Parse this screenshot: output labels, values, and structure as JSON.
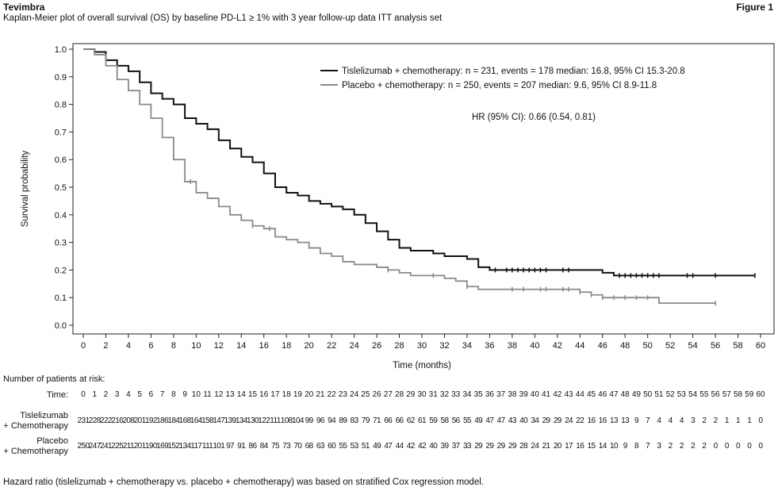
{
  "header": {
    "brand": "Tevimbra",
    "figure": "Figure 1",
    "subtitle": "Kaplan-Meier plot of overall survival (OS) by baseline PD-L1 ≥ 1% with 3 year follow-up data ITT analysis set"
  },
  "chart_data": {
    "type": "line",
    "title": "",
    "xlabel": "Time (months)",
    "ylabel": "Survival probability",
    "xlim": [
      0,
      60
    ],
    "ylim": [
      0,
      1.0
    ],
    "xticks": [
      0,
      2,
      4,
      6,
      8,
      10,
      12,
      14,
      16,
      18,
      20,
      22,
      24,
      26,
      28,
      30,
      32,
      34,
      36,
      38,
      40,
      42,
      44,
      46,
      48,
      50,
      52,
      54,
      56,
      58,
      60
    ],
    "yticks": [
      0.0,
      0.1,
      0.2,
      0.3,
      0.4,
      0.5,
      0.6,
      0.7,
      0.8,
      0.9,
      1.0
    ],
    "ytick_labels": [
      "0.0",
      "0.1",
      "0.2",
      "0.3",
      "0.4",
      "0.5",
      "0.6",
      "0.7",
      "0.8",
      "0.9",
      "1.0"
    ],
    "grid": false,
    "legend_position": "top-right",
    "annotation": "HR (95% CI): 0.66 (0.54, 0.81)",
    "series": [
      {
        "name": "Tislelizumab + chemotherapy: n = 231, events = 178 median: 16.8, 95% CI 15.3-20.8",
        "color": "#111111",
        "points": [
          [
            0,
            1.0
          ],
          [
            1,
            0.99
          ],
          [
            2,
            0.96
          ],
          [
            3,
            0.94
          ],
          [
            4,
            0.92
          ],
          [
            5,
            0.88
          ],
          [
            6,
            0.84
          ],
          [
            7,
            0.82
          ],
          [
            8,
            0.8
          ],
          [
            9,
            0.75
          ],
          [
            10,
            0.73
          ],
          [
            11,
            0.71
          ],
          [
            12,
            0.67
          ],
          [
            13,
            0.64
          ],
          [
            14,
            0.61
          ],
          [
            15,
            0.59
          ],
          [
            16,
            0.55
          ],
          [
            17,
            0.5
          ],
          [
            18,
            0.48
          ],
          [
            19,
            0.47
          ],
          [
            20,
            0.45
          ],
          [
            21,
            0.44
          ],
          [
            22,
            0.43
          ],
          [
            23,
            0.42
          ],
          [
            24,
            0.4
          ],
          [
            25,
            0.37
          ],
          [
            26,
            0.34
          ],
          [
            27,
            0.31
          ],
          [
            28,
            0.28
          ],
          [
            29,
            0.27
          ],
          [
            30,
            0.27
          ],
          [
            31,
            0.26
          ],
          [
            32,
            0.25
          ],
          [
            33,
            0.25
          ],
          [
            34,
            0.24
          ],
          [
            35,
            0.21
          ],
          [
            36,
            0.2
          ],
          [
            38,
            0.2
          ],
          [
            40,
            0.2
          ],
          [
            42,
            0.2
          ],
          [
            44,
            0.2
          ],
          [
            45,
            0.2
          ],
          [
            46,
            0.19
          ],
          [
            47,
            0.18
          ],
          [
            50,
            0.18
          ],
          [
            55,
            0.18
          ],
          [
            59.5,
            0.18
          ]
        ],
        "censored_x": [
          36.5,
          37.5,
          38,
          38.5,
          39,
          39.5,
          40,
          40.5,
          41,
          42.5,
          43,
          47.5,
          48,
          48.5,
          49,
          49.5,
          50,
          50.5,
          51,
          53.5,
          54,
          56,
          59.5
        ]
      },
      {
        "name": "Placebo + chemotherapy: n = 250, events = 207 median: 9.6, 95% CI 8.9-11.8",
        "color": "#8a8a8a",
        "points": [
          [
            0,
            1.0
          ],
          [
            1,
            0.98
          ],
          [
            2,
            0.94
          ],
          [
            3,
            0.89
          ],
          [
            4,
            0.85
          ],
          [
            5,
            0.8
          ],
          [
            6,
            0.75
          ],
          [
            7,
            0.68
          ],
          [
            8,
            0.6
          ],
          [
            9,
            0.52
          ],
          [
            10,
            0.48
          ],
          [
            11,
            0.46
          ],
          [
            12,
            0.43
          ],
          [
            13,
            0.4
          ],
          [
            14,
            0.38
          ],
          [
            15,
            0.36
          ],
          [
            16,
            0.35
          ],
          [
            17,
            0.32
          ],
          [
            18,
            0.31
          ],
          [
            19,
            0.3
          ],
          [
            20,
            0.28
          ],
          [
            21,
            0.26
          ],
          [
            22,
            0.25
          ],
          [
            23,
            0.23
          ],
          [
            24,
            0.22
          ],
          [
            25,
            0.22
          ],
          [
            26,
            0.21
          ],
          [
            27,
            0.2
          ],
          [
            28,
            0.19
          ],
          [
            29,
            0.18
          ],
          [
            30,
            0.18
          ],
          [
            31,
            0.18
          ],
          [
            32,
            0.17
          ],
          [
            33,
            0.16
          ],
          [
            34,
            0.14
          ],
          [
            35,
            0.13
          ],
          [
            38,
            0.13
          ],
          [
            42,
            0.13
          ],
          [
            44,
            0.12
          ],
          [
            45,
            0.11
          ],
          [
            46,
            0.1
          ],
          [
            50,
            0.1
          ],
          [
            51,
            0.08
          ],
          [
            56,
            0.08
          ]
        ],
        "censored_x": [
          9.5,
          15,
          16.5,
          27,
          31,
          34,
          38,
          39,
          40.5,
          41,
          42.5,
          43,
          44,
          45,
          46,
          47,
          48,
          49,
          50,
          56
        ]
      }
    ]
  },
  "risk_table": {
    "title": "Number of patients at risk:",
    "time_label": "Time:",
    "times": [
      "0",
      "1",
      "2",
      "3",
      "4",
      "5",
      "6",
      "7",
      "8",
      "9",
      "10",
      "11",
      "12",
      "13",
      "14",
      "15",
      "16",
      "17",
      "18",
      "19",
      "20",
      "21",
      "22",
      "23",
      "24",
      "25",
      "26",
      "27",
      "28",
      "29",
      "30",
      "31",
      "32",
      "33",
      "34",
      "35",
      "36",
      "37",
      "38",
      "39",
      "40",
      "41",
      "42",
      "43",
      "44",
      "45",
      "46",
      "47",
      "48",
      "49",
      "50",
      "51",
      "52",
      "53",
      "54",
      "55",
      "56",
      "57",
      "58",
      "59",
      "60"
    ],
    "rows": [
      {
        "label_line1": "Tislelizumab",
        "label_line2": "+ Chemotherapy",
        "values": [
          "231",
          "228",
          "222",
          "216",
          "208",
          "201",
          "192",
          "186",
          "184",
          "168",
          "164",
          "158",
          "147",
          "139",
          "134",
          "130",
          "122",
          "111",
          "108",
          "104",
          "99",
          "96",
          "94",
          "89",
          "83",
          "79",
          "71",
          "66",
          "66",
          "62",
          "61",
          "59",
          "58",
          "56",
          "55",
          "49",
          "47",
          "47",
          "43",
          "40",
          "34",
          "29",
          "29",
          "24",
          "22",
          "16",
          "16",
          "13",
          "13",
          "9",
          "7",
          "4",
          "4",
          "4",
          "3",
          "2",
          "2",
          "1",
          "1",
          "1",
          "0"
        ]
      },
      {
        "label_line1": "Placebo",
        "label_line2": "+ Chemotherapy",
        "values": [
          "250",
          "247",
          "241",
          "225",
          "211",
          "201",
          "190",
          "169",
          "152",
          "134",
          "117",
          "111",
          "101",
          "97",
          "91",
          "86",
          "84",
          "75",
          "73",
          "70",
          "68",
          "63",
          "60",
          "55",
          "53",
          "51",
          "49",
          "47",
          "44",
          "42",
          "42",
          "40",
          "39",
          "37",
          "33",
          "29",
          "29",
          "29",
          "29",
          "28",
          "24",
          "21",
          "20",
          "17",
          "16",
          "15",
          "14",
          "10",
          "9",
          "8",
          "7",
          "3",
          "2",
          "2",
          "2",
          "2",
          "0",
          "0",
          "0",
          "0",
          "0"
        ]
      }
    ]
  },
  "footnote": "Hazard ratio (tislelizumab + chemotherapy vs. placebo + chemotherapy) was based on stratified Cox regression model."
}
